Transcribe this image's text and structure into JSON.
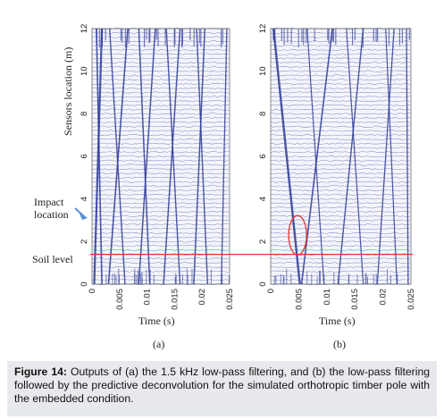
{
  "chart_data": [
    {
      "type": "heatmap",
      "panel_label": "(a)",
      "xlabel": "Time (s)",
      "ylabel": "Sensors location (m)",
      "xlim": [
        0,
        0.025
      ],
      "ylim": [
        0,
        12
      ],
      "x_ticks": [
        "0",
        "0.005",
        "0.01",
        "0.015",
        "0.02",
        "0.025"
      ],
      "y_ticks": [
        "0",
        "2",
        "4",
        "6",
        "8",
        "10",
        "12"
      ],
      "grid": false,
      "annotations": [
        {
          "text": "Impact location",
          "y": 3.6
        },
        {
          "text": "Soil level",
          "y": 1.4
        }
      ],
      "reference_lines": [
        {
          "axis": "y",
          "value": 1.4,
          "color": "#e8302a"
        }
      ],
      "trace_color": "#2e3a96"
    },
    {
      "type": "heatmap",
      "panel_label": "(b)",
      "xlabel": "Time (s)",
      "xlim": [
        0,
        0.025
      ],
      "ylim": [
        0,
        12
      ],
      "x_ticks": [
        "0",
        "0.005",
        "0.01",
        "0.015",
        "0.02",
        "0.025"
      ],
      "y_ticks": [
        "0",
        "2",
        "4",
        "6",
        "8",
        "10",
        "12"
      ],
      "grid": false,
      "highlight": {
        "shape": "ellipse",
        "x_center": 0.0048,
        "y_center": 2.3,
        "color": "#e8302a"
      },
      "reference_lines": [
        {
          "axis": "y",
          "value": 1.4,
          "color": "#e8302a"
        }
      ],
      "trace_color": "#2e3a96"
    }
  ],
  "caption": {
    "label": "Figure 14:",
    "text": "Outputs of (a) the 1.5 kHz low-pass filtering, and (b) the low-pass filtering followed by the predictive deconvolution for the simulated orthotropic timber pole with the embedded condition."
  },
  "labels": {
    "impact_line1": "Impact",
    "impact_line2": "location",
    "soil": "Soil level"
  }
}
